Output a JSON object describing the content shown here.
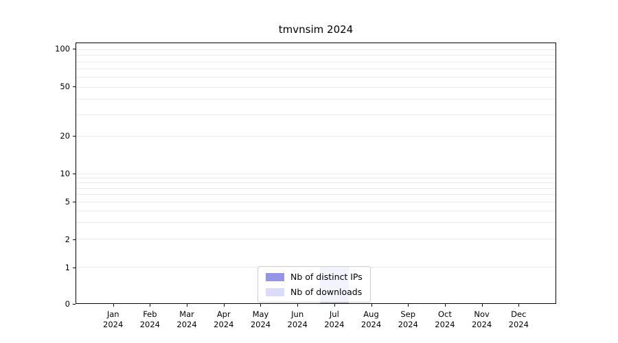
{
  "title": "tmvnsim 2024",
  "legend": {
    "items": [
      {
        "label": "Nb of distinct IPs",
        "color": "#9595e8"
      },
      {
        "label": "Nb of downloads",
        "color": "#dcdcf8"
      }
    ]
  },
  "chart_data": {
    "type": "bar",
    "title": "tmvnsim 2024",
    "categories": [
      "Jan 2024",
      "Feb 2024",
      "Mar 2024",
      "Apr 2024",
      "May 2024",
      "Jun 2024",
      "Jul 2024",
      "Aug 2024",
      "Sep 2024",
      "Oct 2024",
      "Nov 2024",
      "Dec 2024"
    ],
    "series": [
      {
        "name": "Nb of downloads",
        "color": "#dcdcf8",
        "values": [
          0,
          0,
          0,
          0,
          0,
          0,
          1,
          0,
          0,
          0,
          0,
          0
        ]
      },
      {
        "name": "Nb of distinct IPs",
        "color": "#9595e8",
        "values": [
          0,
          0,
          0,
          0,
          0,
          0,
          1,
          0,
          0,
          0,
          0,
          0
        ]
      }
    ],
    "xlabel": "",
    "ylabel": "",
    "yscale": "symlog",
    "y_ticks": [
      0,
      1,
      2,
      5,
      10,
      20,
      50,
      100
    ],
    "minor_grid_values": [
      1,
      2,
      3,
      4,
      5,
      6,
      7,
      8,
      9,
      10,
      20,
      30,
      40,
      50,
      60,
      70,
      80,
      90,
      100
    ],
    "ylim": [
      0,
      110
    ],
    "grid": "horizontal",
    "legend_position": "lower center",
    "grid_color": "#e9e9e9",
    "axis_color": "#000000"
  }
}
